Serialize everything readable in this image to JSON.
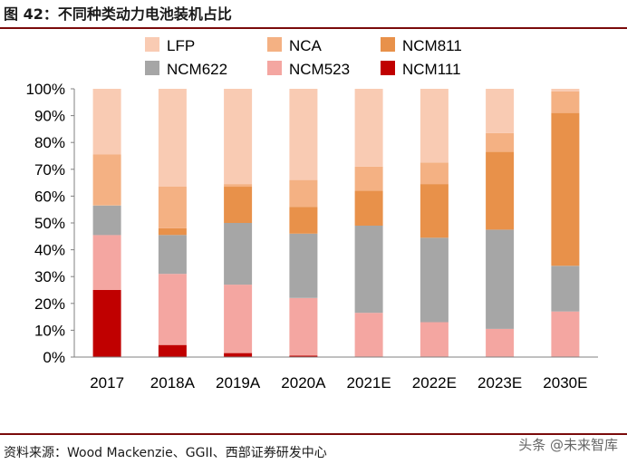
{
  "header": {
    "title": "图 42：不同种类动力电池装机占比"
  },
  "footer": {
    "source": "资料来源：Wood Mackenzie、GGII、西部证券研发中心",
    "watermark": "头条 @未来智库"
  },
  "colors": {
    "LFP": "#f9cbb3",
    "NCA": "#f4b183",
    "NCM811": "#e8914a",
    "NCM622": "#a6a6a6",
    "NCM523": "#f4a6a1",
    "NCM111": "#c00000",
    "title_rule": "#7a0a0a"
  },
  "chart_data": {
    "type": "bar",
    "stacked": true,
    "title": "不同种类动力电池装机占比",
    "xlabel": "",
    "ylabel": "",
    "ylim": [
      0,
      100
    ],
    "y_ticks": [
      "0%",
      "10%",
      "20%",
      "30%",
      "40%",
      "50%",
      "60%",
      "70%",
      "80%",
      "90%",
      "100%"
    ],
    "categories": [
      "2017",
      "2018A",
      "2019A",
      "2020A",
      "2021E",
      "2022E",
      "2023E",
      "2030E"
    ],
    "legend_order": [
      "LFP",
      "NCA",
      "NCM811",
      "NCM622",
      "NCM523",
      "NCM111"
    ],
    "legend_position": "top",
    "series": [
      {
        "name": "NCM111",
        "values": [
          25,
          4.5,
          1.5,
          0.5,
          0,
          0,
          0,
          0
        ]
      },
      {
        "name": "NCM523",
        "values": [
          20.5,
          26.5,
          25.5,
          21.5,
          16.5,
          13,
          10.5,
          17
        ]
      },
      {
        "name": "NCM622",
        "values": [
          11,
          14.5,
          23,
          24,
          32.5,
          31.5,
          37,
          17
        ]
      },
      {
        "name": "NCM811",
        "values": [
          0,
          2.5,
          13.5,
          10,
          13,
          20,
          29,
          57
        ]
      },
      {
        "name": "NCA",
        "values": [
          19,
          15.5,
          1,
          10,
          9,
          8,
          7,
          8
        ]
      },
      {
        "name": "LFP",
        "values": [
          24.5,
          36.5,
          35.5,
          34,
          29,
          27.5,
          16.5,
          1
        ]
      }
    ]
  }
}
